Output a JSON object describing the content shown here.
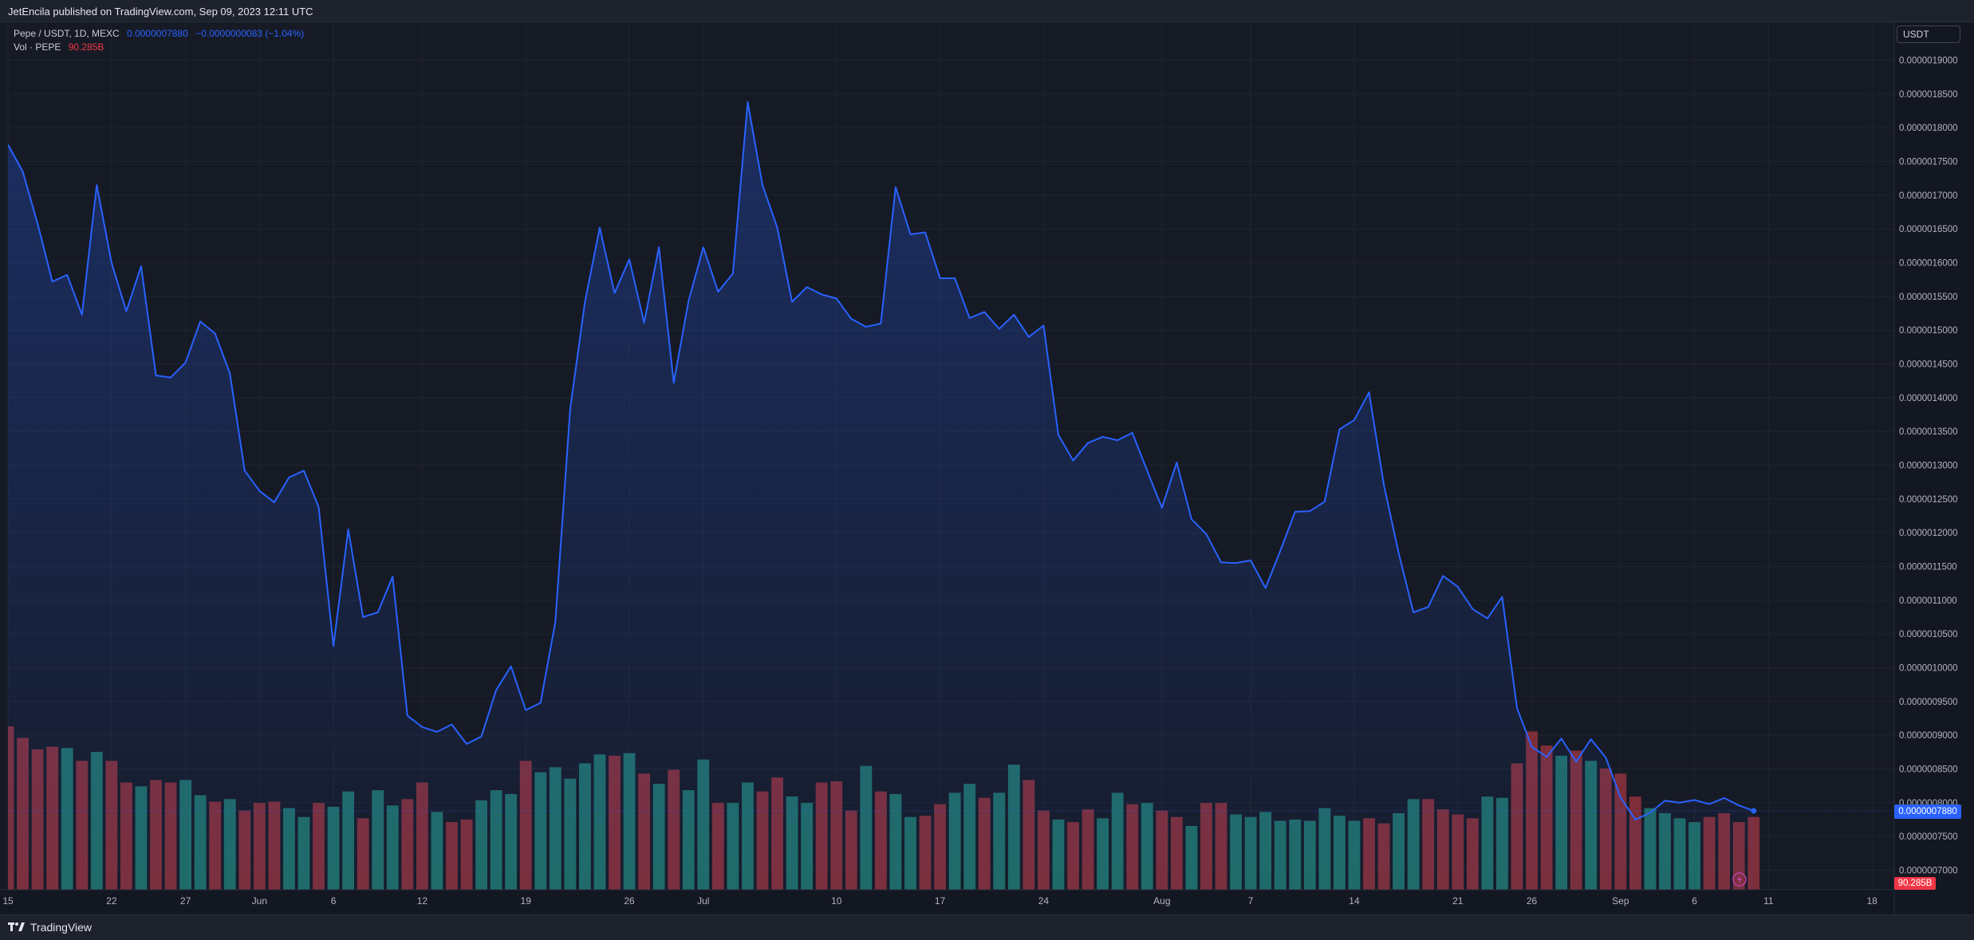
{
  "publisher": "JetEncila published on TradingView.com, Sep 09, 2023 12:11 UTC",
  "legend": {
    "symbol": "Pepe / USDT, 1D, MEXC",
    "last": "0.0000007880",
    "change": "−0.0000000083 (−1.04%)",
    "vol_label": "Vol · PEPE",
    "vol_value": "90.285B"
  },
  "currency": "USDT",
  "last_price_badge": "0.0000007880",
  "last_volume_badge": "90.285B",
  "footer_logo": "TradingView",
  "colors": {
    "background": "#131722",
    "line": "#2962ff",
    "volume_up": "#1f6b65",
    "volume_down": "#7d2e38",
    "grid": "#1f2430"
  },
  "chart_data": {
    "type": "area",
    "title": "Pepe / USDT, 1D, MEXC",
    "y_axis_ticks": [
      "0.0000007000",
      "0.0000007500",
      "0.0000008000",
      "0.0000008500",
      "0.0000009000",
      "0.0000009500",
      "0.0000010000",
      "0.0000010500",
      "0.0000011000",
      "0.0000011500",
      "0.0000012000",
      "0.0000012500",
      "0.0000013000",
      "0.0000013500",
      "0.0000014000",
      "0.0000014500",
      "0.0000015000",
      "0.0000015500",
      "0.0000016000",
      "0.0000016500",
      "0.0000017000",
      "0.0000017500",
      "0.0000018000",
      "0.0000018500",
      "0.0000019000"
    ],
    "y_tick_values": [
      7.0,
      7.5,
      8.0,
      8.5,
      9.0,
      9.5,
      10.0,
      10.5,
      11.0,
      11.5,
      12.0,
      12.5,
      13.0,
      13.5,
      14.0,
      14.5,
      15.0,
      15.5,
      16.0,
      16.5,
      17.0,
      17.5,
      18.0,
      18.5,
      19.0
    ],
    "y_unit_note": "prices ×1e-7 USDT",
    "ylim": [
      6.71,
      19.55
    ],
    "x_axis_ticks": [
      {
        "label": "15",
        "day": 0
      },
      {
        "label": "22",
        "day": 7
      },
      {
        "label": "27",
        "day": 12
      },
      {
        "label": "Jun",
        "day": 17
      },
      {
        "label": "6",
        "day": 22
      },
      {
        "label": "12",
        "day": 28
      },
      {
        "label": "19",
        "day": 35
      },
      {
        "label": "26",
        "day": 42
      },
      {
        "label": "Jul",
        "day": 47
      },
      {
        "label": "10",
        "day": 56
      },
      {
        "label": "17",
        "day": 63
      },
      {
        "label": "24",
        "day": 70
      },
      {
        "label": "Aug",
        "day": 78
      },
      {
        "label": "7",
        "day": 84
      },
      {
        "label": "14",
        "day": 91
      },
      {
        "label": "21",
        "day": 98
      },
      {
        "label": "26",
        "day": 103
      },
      {
        "label": "Sep",
        "day": 109
      },
      {
        "label": "6",
        "day": 114
      },
      {
        "label": "11",
        "day": 119
      },
      {
        "label": "18",
        "day": 126
      }
    ],
    "x_domain_days": [
      0,
      127.5
    ],
    "start_date": "2023-05-15",
    "grid": true,
    "series": [
      {
        "name": "Pepe / USDT",
        "type": "area",
        "values": [
          17.75,
          17.35,
          16.58,
          15.72,
          15.82,
          15.23,
          17.15,
          16.0,
          15.28,
          15.95,
          14.33,
          14.3,
          14.52,
          15.13,
          14.95,
          14.36,
          12.92,
          12.62,
          12.45,
          12.82,
          12.92,
          12.38,
          10.32,
          12.05,
          10.75,
          10.82,
          11.35,
          9.29,
          9.12,
          9.05,
          9.16,
          8.87,
          8.98,
          9.67,
          10.02,
          9.37,
          9.48,
          10.68,
          13.83,
          15.42,
          16.52,
          15.55,
          16.05,
          15.11,
          16.23,
          14.22,
          15.43,
          16.23,
          15.57,
          15.84,
          18.38,
          17.15,
          16.52,
          15.42,
          15.64,
          15.53,
          15.47,
          15.17,
          15.05,
          15.1,
          17.12,
          16.42,
          16.45,
          15.77,
          15.77,
          15.18,
          15.27,
          15.02,
          15.23,
          14.9,
          15.07,
          13.45,
          13.07,
          13.33,
          13.42,
          13.37,
          13.48,
          12.92,
          12.37,
          13.04,
          12.2,
          11.98,
          11.56,
          11.55,
          11.59,
          11.18,
          11.73,
          12.31,
          12.32,
          12.46,
          13.53,
          13.67,
          14.08,
          12.71,
          11.7,
          10.82,
          10.9,
          11.36,
          11.2,
          10.87,
          10.73,
          11.05,
          9.4,
          8.83,
          8.68,
          8.95,
          8.61,
          8.94,
          8.67,
          8.08,
          7.75,
          7.85,
          8.03,
          8.0,
          8.04,
          7.98,
          8.07,
          7.96,
          7.88
        ]
      },
      {
        "name": "Vol · PEPE",
        "type": "bar",
        "up": [
          false,
          false,
          false,
          false,
          true,
          false,
          true,
          false,
          false,
          true,
          false,
          false,
          true,
          true,
          false,
          true,
          false,
          false,
          false,
          true,
          true,
          false,
          true,
          true,
          false,
          true,
          true,
          false,
          false,
          true,
          false,
          false,
          true,
          true,
          true,
          false,
          true,
          true,
          true,
          true,
          true,
          false,
          true,
          false,
          true,
          false,
          true,
          true,
          false,
          true,
          true,
          false,
          false,
          true,
          true,
          false,
          false,
          false,
          true,
          false,
          true,
          true,
          false,
          false,
          true,
          true,
          false,
          true,
          true,
          false,
          false,
          true,
          false,
          false,
          true,
          true,
          false,
          true,
          false,
          false,
          true,
          false,
          false,
          true,
          true,
          true,
          true,
          true,
          true,
          true,
          true,
          true,
          false,
          false,
          true,
          true,
          false,
          false,
          false,
          false,
          true,
          true,
          false,
          false,
          false,
          true,
          false,
          true,
          false,
          false,
          false,
          true,
          true,
          true,
          true,
          false,
          false,
          false,
          false
        ],
        "values": [
          128,
          119,
          110,
          112,
          111,
          101,
          108,
          101,
          84,
          81,
          86,
          84,
          86,
          74,
          69,
          71,
          62,
          68,
          69,
          64,
          57,
          68,
          65,
          77,
          56,
          78,
          66,
          71,
          84,
          61,
          53,
          55,
          70,
          78,
          75,
          101,
          92,
          96,
          87,
          99,
          106,
          105,
          107,
          91,
          83,
          94,
          78,
          102,
          68,
          68,
          84,
          77,
          88,
          73,
          68,
          84,
          85,
          62,
          97,
          77,
          75,
          57,
          58,
          67,
          76,
          83,
          72,
          76,
          98,
          86,
          62,
          55,
          53,
          63,
          56,
          76,
          67,
          68,
          62,
          57,
          50,
          68,
          68,
          59,
          57,
          61,
          54,
          55,
          54,
          64,
          58,
          54,
          56,
          52,
          60,
          71,
          71,
          63,
          59,
          56,
          73,
          72,
          99,
          124,
          113,
          105,
          109,
          101,
          95,
          91,
          73,
          64,
          60,
          56,
          53,
          57,
          60,
          53,
          57
        ]
      }
    ],
    "volume_scale_max": 128,
    "legend_position": "top-left"
  }
}
